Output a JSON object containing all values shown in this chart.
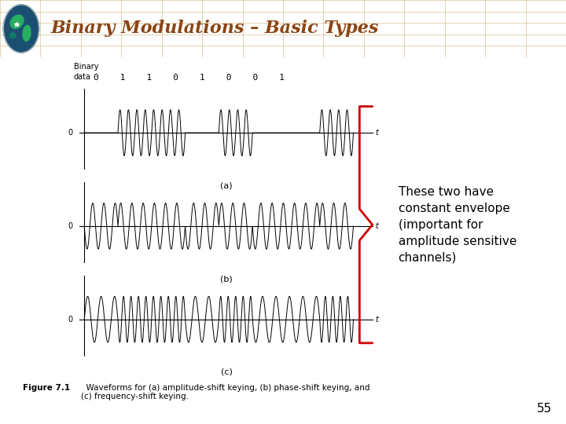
{
  "title": "Binary Modulations – Basic Types",
  "title_color": "#8B4513",
  "header_bg": "#D4B483",
  "slide_bg": "#FFFFFF",
  "binary_data": "0    1    1    0    1    0    0    1",
  "annotation_text": "These two have\nconstant envelope\n(important for\namplitude sensitive\nchannels)",
  "annotation_color": "#000000",
  "brace_color": "#CC0000",
  "page_number": "55",
  "subplot_labels": [
    "(a)",
    "(b)",
    "(c)"
  ],
  "bits": [
    0,
    1,
    1,
    0,
    1,
    0,
    0,
    1
  ],
  "fc_ask": 4.0,
  "fc_psk": 3.0,
  "fc_low": 2.5,
  "fc_high": 4.5
}
